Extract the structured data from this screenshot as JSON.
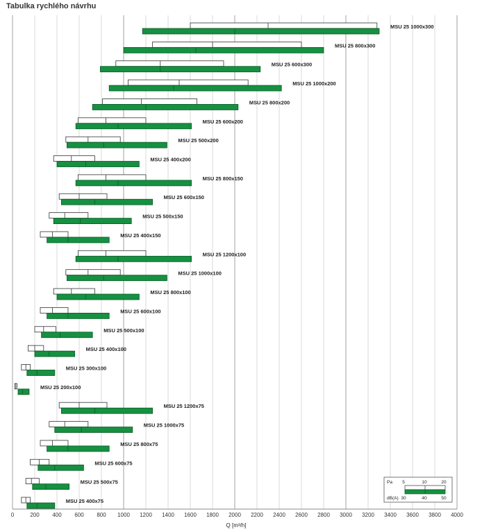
{
  "title": "Tabulka rychlého návrhu",
  "colors": {
    "green": "#169041",
    "green_stroke": "#0c5a27",
    "white_bar": "#ffffff",
    "grid": "#c8c8c8",
    "grid_major": "#a0a0a0"
  },
  "chart_data": {
    "type": "bar",
    "orientation": "horizontal-range",
    "xlabel": "Q [m³/h]",
    "xlim": [
      0,
      4000
    ],
    "x_ticks": [
      "0",
      "200",
      "400",
      "600",
      "800",
      "1000",
      "1200",
      "1400",
      "1600",
      "1800",
      "2000",
      "2200",
      "2400",
      "2600",
      "2800",
      "3000",
      "3200",
      "3400",
      "3600",
      "3800",
      "4000"
    ],
    "grid": true,
    "legend": {
      "position": "bottom-right",
      "pa_label": "Pa",
      "pa_values": [
        "5",
        "10",
        "20"
      ],
      "db_label": "dB(A)",
      "db_values": [
        "30",
        "40",
        "50"
      ]
    },
    "series": [
      {
        "name": "MSU 25 1000x300",
        "pa": [
          1600,
          2300,
          3280
        ],
        "dba": [
          1170,
          2000,
          3300
        ]
      },
      {
        "name": "MSU 25 800x300",
        "pa": [
          1260,
          1800,
          2600
        ],
        "dba": [
          1000,
          1650,
          2800
        ]
      },
      {
        "name": "MSU 25 600x300",
        "pa": [
          930,
          1330,
          1900
        ],
        "dba": [
          790,
          1330,
          2230
        ]
      },
      {
        "name": "MSU 25 1000x200",
        "pa": [
          1040,
          1500,
          2120
        ],
        "dba": [
          870,
          1450,
          2420
        ]
      },
      {
        "name": "MSU 25 800x200",
        "pa": [
          810,
          1160,
          1660
        ],
        "dba": [
          720,
          1200,
          2030
        ]
      },
      {
        "name": "MSU 25 600x200",
        "pa": [
          590,
          840,
          1200
        ],
        "dba": [
          570,
          950,
          1610
        ]
      },
      {
        "name": "MSU 25 500x200",
        "pa": [
          480,
          680,
          970
        ],
        "dba": [
          490,
          820,
          1390
        ]
      },
      {
        "name": "MSU 25 400x200",
        "pa": [
          370,
          530,
          740
        ],
        "dba": [
          400,
          660,
          1140
        ]
      },
      {
        "name": "MSU 25 800x150",
        "pa": [
          590,
          840,
          1200
        ],
        "dba": [
          570,
          950,
          1610
        ]
      },
      {
        "name": "MSU 25 600x150",
        "pa": [
          420,
          600,
          850
        ],
        "dba": [
          440,
          740,
          1260
        ]
      },
      {
        "name": "MSU 25 500x150",
        "pa": [
          330,
          470,
          680
        ],
        "dba": [
          370,
          610,
          1070
        ]
      },
      {
        "name": "MSU 25 400x150",
        "pa": [
          250,
          360,
          500
        ],
        "dba": [
          310,
          500,
          870
        ]
      },
      {
        "name": "MSU 25 1200x100",
        "pa": [
          590,
          840,
          1200
        ],
        "dba": [
          570,
          950,
          1610
        ]
      },
      {
        "name": "MSU 25 1000x100",
        "pa": [
          480,
          680,
          970
        ],
        "dba": [
          490,
          820,
          1390
        ]
      },
      {
        "name": "MSU 25 800x100",
        "pa": [
          370,
          530,
          740
        ],
        "dba": [
          400,
          660,
          1140
        ]
      },
      {
        "name": "MSU 25 600x100",
        "pa": [
          250,
          360,
          500
        ],
        "dba": [
          310,
          500,
          870
        ]
      },
      {
        "name": "MSU 25 500x100",
        "pa": [
          200,
          280,
          390
        ],
        "dba": [
          260,
          430,
          720
        ]
      },
      {
        "name": "MSU 25 400x100",
        "pa": [
          140,
          200,
          280
        ],
        "dba": [
          200,
          330,
          560
        ]
      },
      {
        "name": "MSU 25 300x100",
        "pa": [
          80,
          120,
          160
        ],
        "dba": [
          130,
          220,
          380
        ]
      },
      {
        "name": "MSU 25 200x100",
        "pa": [
          20,
          30,
          40
        ],
        "dba": [
          50,
          90,
          150
        ]
      },
      {
        "name": "MSU 25 1200x75",
        "pa": [
          420,
          600,
          850
        ],
        "dba": [
          440,
          740,
          1260
        ]
      },
      {
        "name": "MSU 25 1000x75",
        "pa": [
          330,
          470,
          680
        ],
        "dba": [
          380,
          620,
          1080
        ]
      },
      {
        "name": "MSU 25 800x75",
        "pa": [
          250,
          360,
          500
        ],
        "dba": [
          310,
          500,
          870
        ]
      },
      {
        "name": "MSU 25 600x75",
        "pa": [
          160,
          240,
          330
        ],
        "dba": [
          230,
          380,
          640
        ]
      },
      {
        "name": "MSU 25 500x75",
        "pa": [
          120,
          170,
          240
        ],
        "dba": [
          180,
          300,
          510
        ]
      },
      {
        "name": "MSU 25 400x75",
        "pa": [
          80,
          120,
          160
        ],
        "dba": [
          130,
          220,
          380
        ]
      }
    ]
  }
}
